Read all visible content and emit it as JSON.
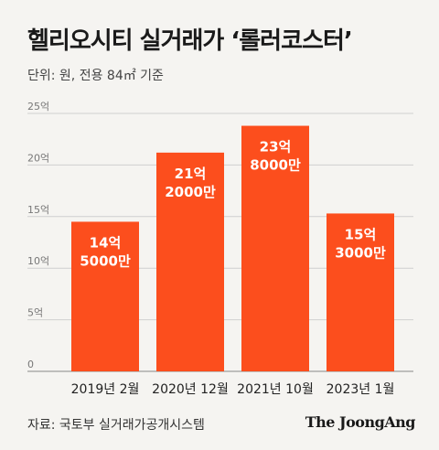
{
  "title": "헬리오시티 실거래가 ‘롤러코스터’",
  "unit_note": "단위: 원, 전용 84㎡ 기준",
  "source": "자료: 국토부 실거래가공개시스템",
  "brand": "The JoongAng",
  "colors": {
    "bar": "#fc4e1d",
    "grid": "#cfcfcf",
    "background": "#f5f4f1"
  },
  "chart_data": {
    "type": "bar",
    "categories": [
      "2019년 2월",
      "2020년 12월",
      "2021년 10월",
      "2023년 1월"
    ],
    "values": [
      14.5,
      21.2,
      23.8,
      15.3
    ],
    "data_labels": [
      [
        "14억",
        "5000만"
      ],
      [
        "21억",
        "2000만"
      ],
      [
        "23억",
        "8000만"
      ],
      [
        "15억",
        "3000만"
      ]
    ],
    "y_ticks": [
      0,
      5,
      10,
      15,
      20,
      25
    ],
    "y_tick_labels": [
      "0",
      "5억",
      "10억",
      "15억",
      "20억",
      "25억"
    ],
    "ylim": [
      0,
      25
    ],
    "grid": true,
    "legend": "none"
  }
}
